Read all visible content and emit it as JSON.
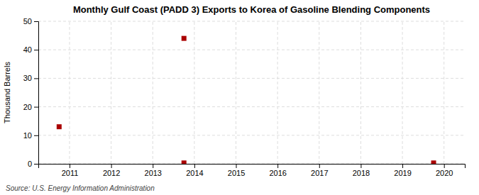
{
  "chart_data": {
    "type": "scatter",
    "title": "Monthly Gulf Coast (PADD 3) Exports to Korea of Gasoline Blending Components",
    "ylabel": "Thousand Barrels",
    "annotations": [
      "Source: U.S. Energy Information Administration"
    ],
    "x": [
      2010.75,
      2013.75,
      2013.75,
      2019.75
    ],
    "values": [
      13.0,
      44.0,
      0.3,
      0.3
    ],
    "color": "#aa0000",
    "marker": "square",
    "xlim": [
      2010.25,
      2020.5
    ],
    "ylim": [
      0,
      50
    ],
    "xticks": [
      2011,
      2012,
      2013,
      2014,
      2015,
      2016,
      2017,
      2018,
      2019,
      2020
    ],
    "yticks": [
      0,
      10,
      20,
      30,
      40,
      50
    ],
    "grid": true
  }
}
